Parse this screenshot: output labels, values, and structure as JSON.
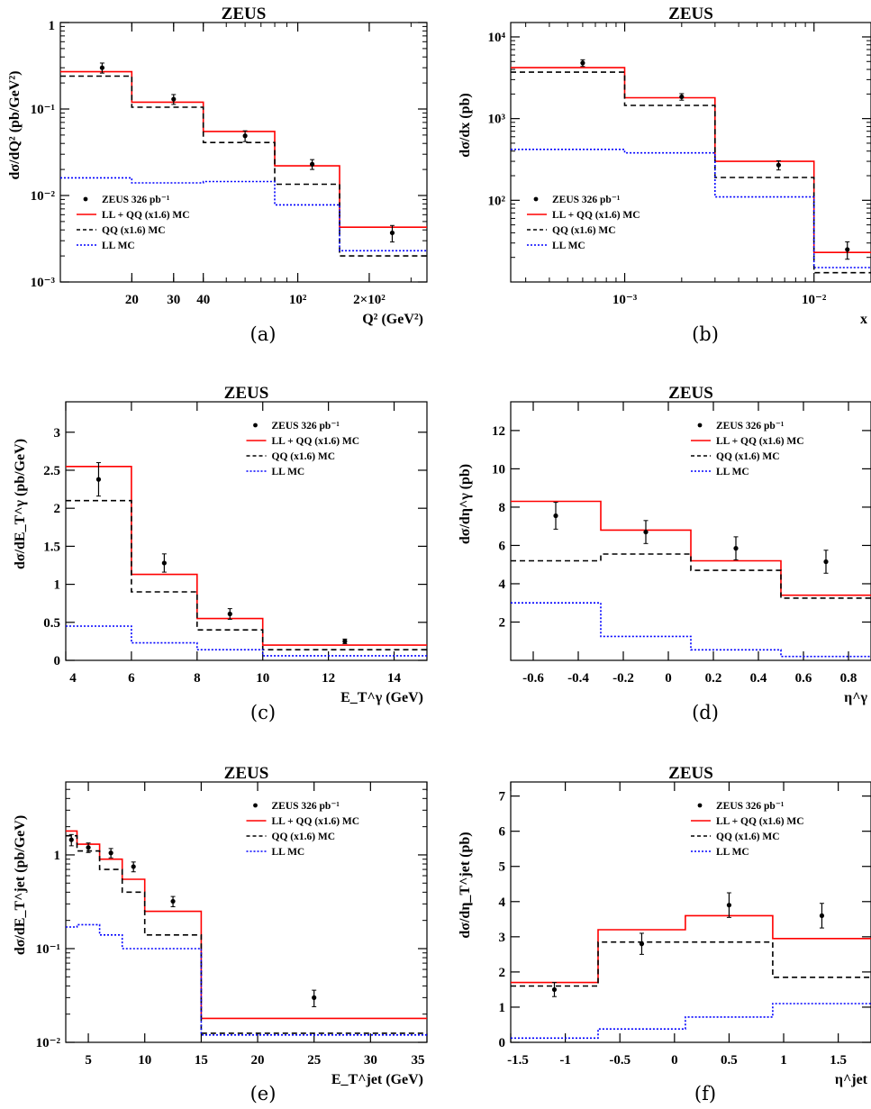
{
  "figure_title": "ZEUS",
  "series_styles": {
    "data": {
      "color": "#000000"
    },
    "LL + QQ (x1.6) MC": {
      "color": "#ff0000",
      "dash": ""
    },
    "QQ (x1.6) MC": {
      "color": "#000000",
      "dash": "6,4"
    },
    "LL MC": {
      "color": "#0000ff",
      "dash": "2,2"
    }
  },
  "chart_data": [
    {
      "id": "a",
      "type": "line",
      "title": "ZEUS",
      "caption": "(a)",
      "ylabel": "dσ/dQ² (pb/GeV²)",
      "xlabel": "Q² (GeV²)",
      "xscale": "log",
      "yscale": "log",
      "xlim": [
        10,
        350
      ],
      "ylim": [
        0.001,
        1
      ],
      "xticks": [
        {
          "v": 20,
          "t": "20"
        },
        {
          "v": 30,
          "t": "30"
        },
        {
          "v": 40,
          "t": "40"
        },
        {
          "v": 100,
          "t": "10²"
        },
        {
          "v": 200,
          "t": "2×10²"
        }
      ],
      "yticks": [
        {
          "v": 0.001,
          "t": "10⁻³"
        },
        {
          "v": 0.01,
          "t": "10⁻²"
        },
        {
          "v": 0.1,
          "t": "10⁻¹"
        },
        {
          "v": 1,
          "t": "1"
        }
      ],
      "legend": {
        "entries": [
          "ZEUS 326 pb⁻¹",
          "LL + QQ (x1.6) MC",
          "QQ (x1.6) MC",
          "LL MC"
        ],
        "placement": "lower-left"
      },
      "edges": [
        10,
        20,
        40,
        80,
        150,
        350
      ],
      "series": [
        {
          "name": "LL + QQ (x1.6) MC",
          "values": [
            0.27,
            0.12,
            0.055,
            0.022,
            0.0043
          ]
        },
        {
          "name": "QQ (x1.6) MC",
          "values": [
            0.24,
            0.105,
            0.041,
            0.0135,
            0.002
          ]
        },
        {
          "name": "LL MC",
          "values": [
            0.016,
            0.014,
            0.0145,
            0.0078,
            0.0023
          ]
        }
      ],
      "points": {
        "name": "ZEUS 326 pb⁻¹",
        "x": [
          15,
          30,
          60,
          115,
          250
        ],
        "y": [
          0.3,
          0.13,
          0.049,
          0.023,
          0.0037
        ],
        "err": [
          0.04,
          0.017,
          0.007,
          0.003,
          0.0008
        ]
      }
    },
    {
      "id": "b",
      "type": "line",
      "title": "ZEUS",
      "caption": "(b)",
      "ylabel": "dσ/dx (pb)",
      "xlabel": "x",
      "xscale": "log",
      "yscale": "log",
      "xlim": [
        0.00025,
        0.02
      ],
      "ylim": [
        10,
        15000
      ],
      "xticks": [
        {
          "v": 0.001,
          "t": "10⁻³"
        },
        {
          "v": 0.01,
          "t": "10⁻²"
        }
      ],
      "yticks": [
        {
          "v": 100,
          "t": "10²"
        },
        {
          "v": 1000,
          "t": "10³"
        },
        {
          "v": 10000,
          "t": "10⁴"
        }
      ],
      "legend": {
        "entries": [
          "ZEUS 326 pb⁻¹",
          "LL + QQ (x1.6) MC",
          "QQ (x1.6) MC",
          "LL MC"
        ],
        "placement": "lower-left"
      },
      "edges": [
        0.00025,
        0.001,
        0.003,
        0.01,
        0.02
      ],
      "series": [
        {
          "name": "LL + QQ (x1.6) MC",
          "values": [
            4200,
            1800,
            300,
            23
          ]
        },
        {
          "name": "QQ (x1.6) MC",
          "values": [
            3700,
            1450,
            190,
            13
          ]
        },
        {
          "name": "LL MC",
          "values": [
            420,
            380,
            110,
            15
          ]
        }
      ],
      "points": {
        "name": "ZEUS 326 pb⁻¹",
        "x": [
          0.0006,
          0.002,
          0.0065,
          0.015
        ],
        "y": [
          4800,
          1850,
          270,
          25
        ],
        "err": [
          450,
          170,
          35,
          6
        ]
      }
    },
    {
      "id": "c",
      "type": "line",
      "title": "ZEUS",
      "caption": "(c)",
      "ylabel": "dσ/dE_T^γ (pb/GeV)",
      "xlabel": "E_T^γ (GeV)",
      "xscale": "linear",
      "yscale": "linear",
      "xlim": [
        4,
        15
      ],
      "ylim": [
        0,
        3.4
      ],
      "xticks": [
        {
          "v": 4,
          "t": "4"
        },
        {
          "v": 6,
          "t": "6"
        },
        {
          "v": 8,
          "t": "8"
        },
        {
          "v": 10,
          "t": "10"
        },
        {
          "v": 12,
          "t": "12"
        },
        {
          "v": 14,
          "t": "14"
        }
      ],
      "yticks": [
        {
          "v": 0,
          "t": "0"
        },
        {
          "v": 0.5,
          "t": "0.5"
        },
        {
          "v": 1,
          "t": "1"
        },
        {
          "v": 1.5,
          "t": "1.5"
        },
        {
          "v": 2,
          "t": "2"
        },
        {
          "v": 2.5,
          "t": "2.5"
        },
        {
          "v": 3,
          "t": "3"
        }
      ],
      "legend": {
        "entries": [
          "ZEUS 326 pb⁻¹",
          "LL + QQ (x1.6) MC",
          "QQ (x1.6) MC",
          "LL MC"
        ],
        "placement": "top-right"
      },
      "edges": [
        4,
        6,
        8,
        10,
        15
      ],
      "series": [
        {
          "name": "LL + QQ (x1.6) MC",
          "values": [
            2.55,
            1.13,
            0.55,
            0.2
          ]
        },
        {
          "name": "QQ (x1.6) MC",
          "values": [
            2.1,
            0.9,
            0.4,
            0.14
          ]
        },
        {
          "name": "LL MC",
          "values": [
            0.45,
            0.23,
            0.14,
            0.06
          ]
        }
      ],
      "points": {
        "name": "ZEUS 326 pb⁻¹",
        "x": [
          5,
          7,
          9,
          12.5
        ],
        "y": [
          2.38,
          1.28,
          0.61,
          0.25
        ],
        "err": [
          0.22,
          0.12,
          0.07,
          0.03
        ]
      }
    },
    {
      "id": "d",
      "type": "line",
      "title": "ZEUS",
      "caption": "(d)",
      "ylabel": "dσ/dη^γ (pb)",
      "xlabel": "η^γ",
      "xscale": "linear",
      "yscale": "linear",
      "xlim": [
        -0.7,
        0.9
      ],
      "ylim": [
        0,
        13.5
      ],
      "xticks": [
        {
          "v": -0.6,
          "t": "-0.6"
        },
        {
          "v": -0.4,
          "t": "-0.4"
        },
        {
          "v": -0.2,
          "t": "-0.2"
        },
        {
          "v": 0,
          "t": "0"
        },
        {
          "v": 0.2,
          "t": "0.2"
        },
        {
          "v": 0.4,
          "t": "0.4"
        },
        {
          "v": 0.6,
          "t": "0.6"
        },
        {
          "v": 0.8,
          "t": "0.8"
        }
      ],
      "yticks": [
        {
          "v": 2,
          "t": "2"
        },
        {
          "v": 4,
          "t": "4"
        },
        {
          "v": 6,
          "t": "6"
        },
        {
          "v": 8,
          "t": "8"
        },
        {
          "v": 10,
          "t": "10"
        },
        {
          "v": 12,
          "t": "12"
        }
      ],
      "legend": {
        "entries": [
          "ZEUS 326 pb⁻¹",
          "LL + QQ (x1.6) MC",
          "QQ (x1.6) MC",
          "LL MC"
        ],
        "placement": "top-right"
      },
      "edges": [
        -0.7,
        -0.3,
        0.1,
        0.5,
        0.9
      ],
      "series": [
        {
          "name": "LL + QQ (x1.6) MC",
          "values": [
            8.3,
            6.8,
            5.2,
            3.4
          ]
        },
        {
          "name": "QQ (x1.6) MC",
          "values": [
            5.2,
            5.55,
            4.7,
            3.25
          ]
        },
        {
          "name": "LL MC",
          "values": [
            3.0,
            1.25,
            0.55,
            0.2
          ]
        }
      ],
      "points": {
        "name": "ZEUS 326 pb⁻¹",
        "x": [
          -0.5,
          -0.1,
          0.3,
          0.7
        ],
        "y": [
          7.55,
          6.7,
          5.85,
          5.15
        ],
        "err": [
          0.7,
          0.6,
          0.6,
          0.6
        ]
      }
    },
    {
      "id": "e",
      "type": "line",
      "title": "ZEUS",
      "caption": "(e)",
      "ylabel": "dσ/dE_T^jet (pb/GeV)",
      "xlabel": "E_T^jet (GeV)",
      "xscale": "linear",
      "yscale": "log",
      "xlim": [
        3,
        35
      ],
      "ylim": [
        0.01,
        6
      ],
      "xticks": [
        {
          "v": 5,
          "t": "5"
        },
        {
          "v": 10,
          "t": "10"
        },
        {
          "v": 15,
          "t": "15"
        },
        {
          "v": 20,
          "t": "20"
        },
        {
          "v": 25,
          "t": "25"
        },
        {
          "v": 30,
          "t": "30"
        },
        {
          "v": 35,
          "t": "35"
        }
      ],
      "yticks": [
        {
          "v": 0.01,
          "t": "10⁻²"
        },
        {
          "v": 0.1,
          "t": "10⁻¹"
        },
        {
          "v": 1,
          "t": "1"
        }
      ],
      "legend": {
        "entries": [
          "ZEUS 326 pb⁻¹",
          "LL + QQ (x1.6) MC",
          "QQ (x1.6) MC",
          "LL MC"
        ],
        "placement": "top-right"
      },
      "edges": [
        3,
        4,
        6,
        8,
        10,
        15,
        35
      ],
      "series": [
        {
          "name": "LL + QQ (x1.6) MC",
          "values": [
            1.8,
            1.3,
            0.9,
            0.55,
            0.25,
            0.018
          ]
        },
        {
          "name": "QQ (x1.6) MC",
          "values": [
            1.6,
            1.1,
            0.7,
            0.4,
            0.14,
            0.0125
          ]
        },
        {
          "name": "LL MC",
          "values": [
            0.17,
            0.18,
            0.14,
            0.1,
            0.1,
            0.012
          ]
        }
      ],
      "points": {
        "name": "ZEUS 326 pb⁻¹",
        "x": [
          3.5,
          5,
          7,
          9,
          12.5,
          25
        ],
        "y": [
          1.45,
          1.2,
          1.05,
          0.75,
          0.32,
          0.03
        ],
        "err": [
          0.2,
          0.14,
          0.12,
          0.09,
          0.04,
          0.006
        ]
      }
    },
    {
      "id": "f",
      "type": "line",
      "title": "ZEUS",
      "caption": "(f)",
      "ylabel": "dσ/dη_T^jet (pb)",
      "xlabel": "η^jet",
      "xscale": "linear",
      "yscale": "linear",
      "xlim": [
        -1.5,
        1.8
      ],
      "ylim": [
        0,
        7.4
      ],
      "xticks": [
        {
          "v": -1.5,
          "t": "-1.5"
        },
        {
          "v": -1,
          "t": "-1"
        },
        {
          "v": -0.5,
          "t": "-0.5"
        },
        {
          "v": 0,
          "t": "0"
        },
        {
          "v": 0.5,
          "t": "0.5"
        },
        {
          "v": 1,
          "t": "1"
        },
        {
          "v": 1.5,
          "t": "1.5"
        }
      ],
      "yticks": [
        {
          "v": 0,
          "t": "0"
        },
        {
          "v": 1,
          "t": "1"
        },
        {
          "v": 2,
          "t": "2"
        },
        {
          "v": 3,
          "t": "3"
        },
        {
          "v": 4,
          "t": "4"
        },
        {
          "v": 5,
          "t": "5"
        },
        {
          "v": 6,
          "t": "6"
        },
        {
          "v": 7,
          "t": "7"
        }
      ],
      "legend": {
        "entries": [
          "ZEUS 326 pb⁻¹",
          "LL + QQ (x1.6) MC",
          "QQ (x1.6) MC",
          "LL MC"
        ],
        "placement": "top-right"
      },
      "edges": [
        -1.5,
        -0.7,
        0.1,
        0.9,
        1.8
      ],
      "series": [
        {
          "name": "LL + QQ (x1.6) MC",
          "values": [
            1.7,
            3.2,
            3.6,
            2.95
          ]
        },
        {
          "name": "QQ (x1.6) MC",
          "values": [
            1.6,
            2.85,
            2.85,
            1.85
          ]
        },
        {
          "name": "LL MC",
          "values": [
            0.12,
            0.38,
            0.72,
            1.1
          ]
        }
      ],
      "points": {
        "name": "ZEUS 326 pb⁻¹",
        "x": [
          -1.1,
          -0.3,
          0.5,
          1.35
        ],
        "y": [
          1.5,
          2.8,
          3.9,
          3.6
        ],
        "err": [
          0.2,
          0.3,
          0.35,
          0.35
        ]
      }
    }
  ]
}
